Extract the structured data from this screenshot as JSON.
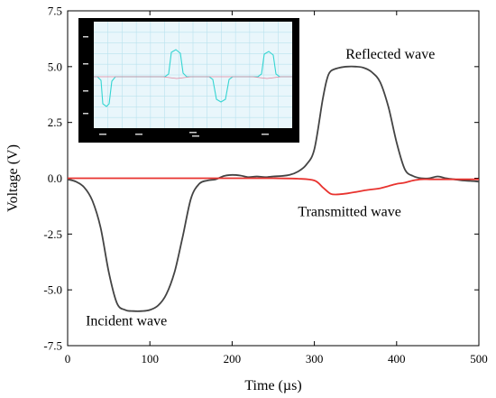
{
  "chart_data": {
    "type": "line",
    "xlabel": "Time (µs)",
    "ylabel": "Voltage (V)",
    "xlim": [
      0,
      500
    ],
    "ylim": [
      -7.5,
      7.5
    ],
    "xticks": [
      0,
      100,
      200,
      300,
      400,
      500
    ],
    "xtick_labels": [
      "0",
      "100",
      "200",
      "300",
      "400",
      "500"
    ],
    "yticks": [
      -7.5,
      -5.0,
      -2.5,
      0.0,
      2.5,
      5.0,
      7.5
    ],
    "ytick_labels": [
      "-7.5",
      "-5.0",
      "-2.5",
      "0.0",
      "2.5",
      "5.0",
      "7.5"
    ],
    "grid": false,
    "series": [
      {
        "color": "#444444",
        "x": [
          0,
          10,
          20,
          30,
          40,
          50,
          60,
          70,
          80,
          90,
          100,
          110,
          120,
          130,
          140,
          150,
          160,
          170,
          180,
          190,
          200,
          210,
          220,
          230,
          240,
          250,
          260,
          270,
          280,
          290,
          300,
          310,
          315,
          320,
          330,
          340,
          350,
          360,
          370,
          380,
          390,
          400,
          410,
          420,
          430,
          440,
          450,
          460,
          470,
          480,
          490,
          500
        ],
        "y": [
          -0.05,
          -0.15,
          -0.4,
          -1.0,
          -2.2,
          -4.2,
          -5.6,
          -5.9,
          -5.95,
          -5.95,
          -5.9,
          -5.7,
          -5.2,
          -4.2,
          -2.6,
          -0.9,
          -0.25,
          -0.1,
          -0.05,
          0.1,
          0.15,
          0.12,
          0.05,
          0.08,
          0.05,
          0.08,
          0.1,
          0.15,
          0.3,
          0.6,
          1.3,
          3.5,
          4.4,
          4.8,
          4.95,
          5.0,
          5.0,
          4.95,
          4.75,
          4.3,
          3.2,
          1.6,
          0.4,
          0.1,
          0.0,
          0.0,
          0.08,
          0.0,
          -0.05,
          -0.1,
          -0.12,
          -0.15
        ]
      },
      {
        "color": "#e8332f",
        "x": [
          0,
          50,
          100,
          150,
          200,
          250,
          280,
          300,
          310,
          320,
          330,
          340,
          350,
          360,
          370,
          380,
          390,
          400,
          410,
          420,
          430,
          440,
          450,
          460,
          480,
          500
        ],
        "y": [
          0.0,
          0.0,
          0.0,
          0.0,
          0.0,
          0.0,
          -0.02,
          -0.1,
          -0.4,
          -0.7,
          -0.72,
          -0.68,
          -0.62,
          -0.55,
          -0.5,
          -0.45,
          -0.35,
          -0.25,
          -0.2,
          -0.1,
          -0.05,
          -0.05,
          -0.05,
          -0.05,
          -0.05,
          -0.05
        ]
      }
    ],
    "annotations": [
      {
        "text": "Reflected wave",
        "x": 338,
        "y": 5.35
      },
      {
        "text": "Transmitted wave",
        "x": 280,
        "y": -1.7
      },
      {
        "text": "Incident wave",
        "x": 22,
        "y": -6.6
      }
    ]
  },
  "inset": {
    "description_icon": "oscilloscope-screenshot-icon",
    "frame_color": "#000000",
    "screen_color": "#e9f6fb",
    "grid_color": "#b9e2ee",
    "trace_cyan_color": "#35d5d2",
    "trace_pink_color": "#e2869e",
    "border_ticks_color": "#cfcfcf"
  }
}
